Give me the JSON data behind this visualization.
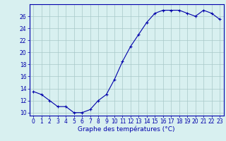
{
  "hours": [
    0,
    1,
    2,
    3,
    4,
    5,
    6,
    7,
    8,
    9,
    10,
    11,
    12,
    13,
    14,
    15,
    16,
    17,
    18,
    19,
    20,
    21,
    22,
    23
  ],
  "temps": [
    13.5,
    13.0,
    12.0,
    11.0,
    11.0,
    10.0,
    10.0,
    10.5,
    12.0,
    13.0,
    15.5,
    18.5,
    21.0,
    23.0,
    25.0,
    26.5,
    27.0,
    27.0,
    27.0,
    26.5,
    26.0,
    27.0,
    26.5,
    25.5
  ],
  "line_color": "#0000aa",
  "marker": "+",
  "bg_color": "#d8f0f0",
  "grid_color": "#a8c8c8",
  "xlabel": "Graphe des températures (°C)",
  "xlabel_color": "#0000aa",
  "ylim": [
    9.5,
    28
  ],
  "yticks": [
    10,
    12,
    14,
    16,
    18,
    20,
    22,
    24,
    26
  ],
  "xlim": [
    -0.5,
    23.5
  ],
  "tick_color": "#0000aa",
  "axis_label_fontsize": 6.5,
  "tick_fontsize": 5.5
}
